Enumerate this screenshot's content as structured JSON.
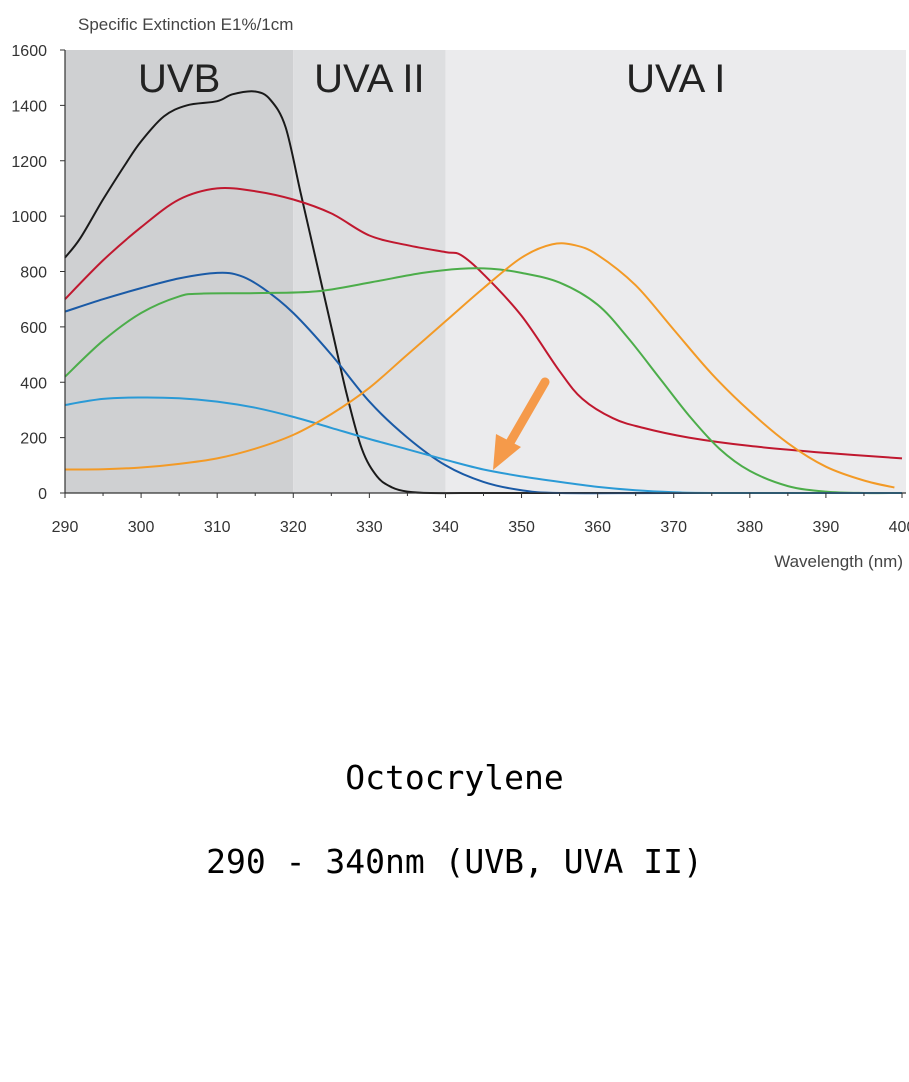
{
  "chart_data": {
    "type": "line",
    "ylabel": "Specific Extinction E1%/1cm",
    "xlabel": "Wavelength (nm)",
    "xlim": [
      290,
      400
    ],
    "ylim": [
      0,
      1600
    ],
    "x_ticks": [
      290,
      300,
      310,
      320,
      330,
      340,
      350,
      360,
      370,
      380,
      390,
      400
    ],
    "y_ticks": [
      0,
      200,
      400,
      600,
      800,
      1000,
      1200,
      1400,
      1600
    ],
    "grid": false,
    "legend": "none",
    "regions": [
      {
        "label": "UVB",
        "x_start": 290,
        "x_end": 320,
        "color": "#cfd0d2"
      },
      {
        "label": "UVA II",
        "x_start": 320,
        "x_end": 340,
        "color": "#dddee0"
      },
      {
        "label": "UVA I",
        "x_start": 340,
        "x_end": 400,
        "color": "#ebebed"
      }
    ],
    "series": [
      {
        "color": "#1a1a1a",
        "points": [
          [
            290,
            850
          ],
          [
            292,
            920
          ],
          [
            295,
            1060
          ],
          [
            298,
            1190
          ],
          [
            300,
            1270
          ],
          [
            303,
            1360
          ],
          [
            306,
            1400
          ],
          [
            310,
            1415
          ],
          [
            312,
            1440
          ],
          [
            315,
            1450
          ],
          [
            317,
            1420
          ],
          [
            319,
            1320
          ],
          [
            321,
            1080
          ],
          [
            323,
            840
          ],
          [
            325,
            600
          ],
          [
            327,
            360
          ],
          [
            329,
            160
          ],
          [
            331,
            60
          ],
          [
            333,
            20
          ],
          [
            335,
            5
          ],
          [
            338,
            0
          ],
          [
            345,
            0
          ],
          [
            355,
            0
          ],
          [
            370,
            0
          ],
          [
            385,
            0
          ],
          [
            400,
            0
          ]
        ]
      },
      {
        "color": "#c0182f",
        "points": [
          [
            290,
            700
          ],
          [
            295,
            840
          ],
          [
            300,
            960
          ],
          [
            305,
            1060
          ],
          [
            310,
            1100
          ],
          [
            315,
            1090
          ],
          [
            320,
            1060
          ],
          [
            325,
            1010
          ],
          [
            330,
            930
          ],
          [
            335,
            895
          ],
          [
            340,
            870
          ],
          [
            342,
            860
          ],
          [
            345,
            790
          ],
          [
            350,
            640
          ],
          [
            355,
            440
          ],
          [
            358,
            340
          ],
          [
            362,
            270
          ],
          [
            366,
            235
          ],
          [
            372,
            200
          ],
          [
            380,
            170
          ],
          [
            390,
            145
          ],
          [
            400,
            125
          ]
        ]
      },
      {
        "color": "#1a5aa6",
        "points": [
          [
            290,
            655
          ],
          [
            295,
            700
          ],
          [
            300,
            740
          ],
          [
            305,
            775
          ],
          [
            310,
            795
          ],
          [
            313,
            785
          ],
          [
            316,
            740
          ],
          [
            320,
            650
          ],
          [
            325,
            500
          ],
          [
            330,
            330
          ],
          [
            335,
            200
          ],
          [
            340,
            100
          ],
          [
            345,
            40
          ],
          [
            350,
            10
          ],
          [
            355,
            0
          ],
          [
            370,
            0
          ],
          [
            400,
            0
          ]
        ]
      },
      {
        "color": "#4cad4a",
        "points": [
          [
            290,
            420
          ],
          [
            295,
            550
          ],
          [
            300,
            650
          ],
          [
            305,
            710
          ],
          [
            308,
            720
          ],
          [
            315,
            722
          ],
          [
            323,
            728
          ],
          [
            330,
            760
          ],
          [
            337,
            795
          ],
          [
            342,
            810
          ],
          [
            346,
            810
          ],
          [
            350,
            795
          ],
          [
            355,
            760
          ],
          [
            360,
            680
          ],
          [
            364,
            560
          ],
          [
            368,
            420
          ],
          [
            372,
            280
          ],
          [
            376,
            160
          ],
          [
            380,
            80
          ],
          [
            385,
            25
          ],
          [
            390,
            5
          ],
          [
            395,
            0
          ],
          [
            400,
            0
          ]
        ]
      },
      {
        "color": "#2a9ad6",
        "points": [
          [
            290,
            318
          ],
          [
            295,
            340
          ],
          [
            300,
            345
          ],
          [
            305,
            342
          ],
          [
            310,
            330
          ],
          [
            315,
            308
          ],
          [
            320,
            275
          ],
          [
            325,
            235
          ],
          [
            330,
            195
          ],
          [
            335,
            158
          ],
          [
            340,
            120
          ],
          [
            345,
            85
          ],
          [
            350,
            60
          ],
          [
            355,
            40
          ],
          [
            360,
            22
          ],
          [
            365,
            10
          ],
          [
            370,
            3
          ],
          [
            375,
            0
          ],
          [
            400,
            0
          ]
        ]
      },
      {
        "color": "#f39a26",
        "points": [
          [
            290,
            85
          ],
          [
            295,
            86
          ],
          [
            300,
            92
          ],
          [
            305,
            105
          ],
          [
            310,
            125
          ],
          [
            315,
            160
          ],
          [
            320,
            210
          ],
          [
            325,
            285
          ],
          [
            330,
            380
          ],
          [
            335,
            500
          ],
          [
            340,
            620
          ],
          [
            345,
            740
          ],
          [
            350,
            850
          ],
          [
            354,
            898
          ],
          [
            357,
            895
          ],
          [
            360,
            860
          ],
          [
            365,
            750
          ],
          [
            370,
            590
          ],
          [
            375,
            430
          ],
          [
            380,
            295
          ],
          [
            385,
            180
          ],
          [
            390,
            95
          ],
          [
            395,
            45
          ],
          [
            399,
            20
          ]
        ]
      }
    ]
  },
  "caption": {
    "title": "Octocrylene",
    "range": "290 - 340nm (UVB, UVA II)"
  }
}
